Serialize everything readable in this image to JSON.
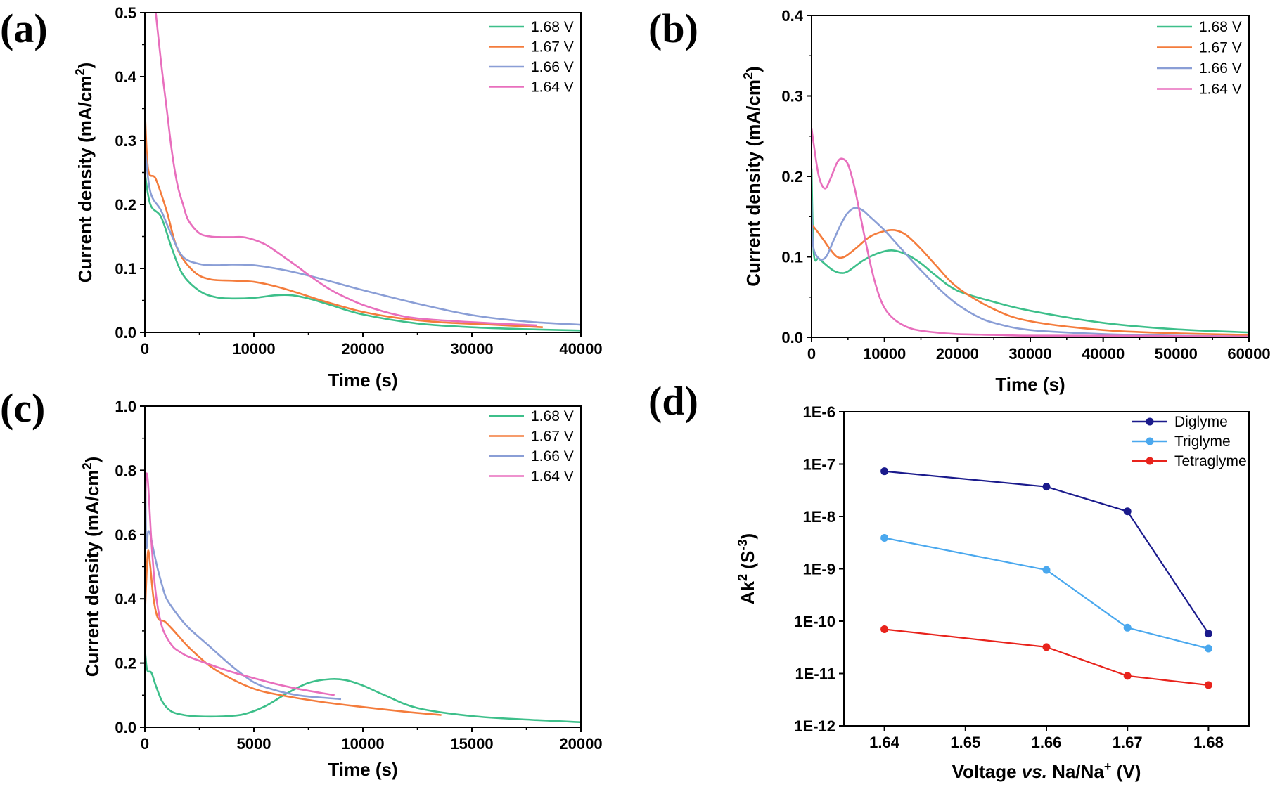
{
  "chart_data": [
    {
      "panel": "(a)",
      "type": "line",
      "xlabel": "Time (s)",
      "ylabel": "Current density (mA/cm²)",
      "xlim": [
        0,
        40000
      ],
      "ylim": [
        0,
        0.5
      ],
      "xticks": [
        0,
        10000,
        20000,
        30000,
        40000
      ],
      "yticks": [
        0.0,
        0.1,
        0.2,
        0.3,
        0.4,
        0.5
      ],
      "xtick_labels": [
        "0",
        "10000",
        "20000",
        "30000",
        "40000"
      ],
      "ytick_labels": [
        "0.0",
        "0.1",
        "0.2",
        "0.3",
        "0.4",
        "0.5"
      ],
      "legend_position": "top-right",
      "series": [
        {
          "name": "1.68 V",
          "color": "#3dbf8a",
          "x": [
            0,
            500,
            1500,
            2500,
            3500,
            5000,
            6500,
            8000,
            10000,
            12000,
            13500,
            15000,
            17000,
            20000,
            25000,
            30000,
            35000,
            40000
          ],
          "y": [
            0.25,
            0.2,
            0.18,
            0.13,
            0.09,
            0.065,
            0.055,
            0.053,
            0.054,
            0.058,
            0.058,
            0.053,
            0.043,
            0.028,
            0.014,
            0.008,
            0.005,
            0.003
          ]
        },
        {
          "name": "1.67 V",
          "color": "#f47c3c",
          "x": [
            0,
            300,
            1000,
            2000,
            3000,
            4500,
            6000,
            8000,
            10000,
            12000,
            14000,
            16000,
            18000,
            20000,
            23000,
            27000,
            32000,
            36500
          ],
          "y": [
            0.35,
            0.255,
            0.24,
            0.19,
            0.13,
            0.095,
            0.083,
            0.081,
            0.079,
            0.072,
            0.062,
            0.051,
            0.041,
            0.032,
            0.023,
            0.016,
            0.012,
            0.008
          ]
        },
        {
          "name": "1.66 V",
          "color": "#8a9ed6",
          "x": [
            0,
            500,
            1500,
            2500,
            3500,
            5000,
            6500,
            8000,
            10000,
            12000,
            14000,
            17000,
            20000,
            25000,
            30000,
            35000,
            40000
          ],
          "y": [
            0.29,
            0.22,
            0.19,
            0.15,
            0.118,
            0.107,
            0.105,
            0.106,
            0.105,
            0.1,
            0.093,
            0.08,
            0.066,
            0.045,
            0.027,
            0.017,
            0.012
          ]
        },
        {
          "name": "1.64 V",
          "color": "#e86fbd",
          "x": [
            1000,
            1500,
            2000,
            2500,
            3000,
            3500,
            4000,
            5000,
            6000,
            7000,
            8000,
            9000,
            10000,
            11000,
            12000,
            13000,
            14000,
            15000,
            16000,
            17000,
            18000,
            20000,
            22500,
            25000,
            30000,
            36000
          ],
          "y": [
            0.5,
            0.42,
            0.35,
            0.28,
            0.23,
            0.2,
            0.175,
            0.155,
            0.15,
            0.149,
            0.149,
            0.149,
            0.145,
            0.138,
            0.127,
            0.115,
            0.103,
            0.09,
            0.078,
            0.067,
            0.058,
            0.043,
            0.03,
            0.022,
            0.016,
            0.011
          ]
        }
      ]
    },
    {
      "panel": "(b)",
      "type": "line",
      "xlabel": "Time (s)",
      "ylabel": "Current density (mA/cm²)",
      "xlim": [
        0,
        60000
      ],
      "ylim": [
        0,
        0.4
      ],
      "xticks": [
        0,
        10000,
        20000,
        30000,
        40000,
        50000,
        60000
      ],
      "yticks": [
        0.0,
        0.1,
        0.2,
        0.3,
        0.4
      ],
      "xtick_labels": [
        "0",
        "10000",
        "20000",
        "30000",
        "40000",
        "50000",
        "60000"
      ],
      "ytick_labels": [
        "0.0",
        "0.1",
        "0.2",
        "0.3",
        "0.4"
      ],
      "legend_position": "top-right",
      "series": [
        {
          "name": "1.68 V",
          "color": "#3dbf8a",
          "x": [
            0,
            300,
            1000,
            2000,
            3000,
            4000,
            5000,
            7000,
            9000,
            11000,
            13000,
            15000,
            17000,
            20000,
            25000,
            30000,
            40000,
            50000,
            60000
          ],
          "y": [
            0.21,
            0.105,
            0.098,
            0.09,
            0.083,
            0.08,
            0.082,
            0.095,
            0.104,
            0.108,
            0.103,
            0.092,
            0.077,
            0.058,
            0.044,
            0.033,
            0.018,
            0.01,
            0.006
          ]
        },
        {
          "name": "1.67 V",
          "color": "#f47c3c",
          "x": [
            0,
            500,
            1500,
            2500,
            3500,
            4500,
            6000,
            8000,
            10000,
            11500,
            13000,
            15000,
            17000,
            20000,
            25000,
            30000,
            40000,
            50000,
            60000
          ],
          "y": [
            0.14,
            0.135,
            0.123,
            0.11,
            0.1,
            0.1,
            0.11,
            0.125,
            0.132,
            0.133,
            0.127,
            0.11,
            0.09,
            0.062,
            0.035,
            0.02,
            0.009,
            0.005,
            0.003
          ]
        },
        {
          "name": "1.66 V",
          "color": "#8a9ed6",
          "x": [
            0,
            200,
            1000,
            2000,
            3000,
            4000,
            5000,
            6000,
            7000,
            8000,
            10000,
            12000,
            14000,
            16000,
            18000,
            20000,
            22500,
            25000,
            30000,
            40000,
            50000,
            60000
          ],
          "y": [
            0.17,
            0.115,
            0.098,
            0.1,
            0.12,
            0.14,
            0.155,
            0.161,
            0.158,
            0.15,
            0.133,
            0.113,
            0.093,
            0.074,
            0.056,
            0.041,
            0.027,
            0.018,
            0.009,
            0.004,
            0.002,
            0.001
          ]
        },
        {
          "name": "1.64 V",
          "color": "#e86fbd",
          "x": [
            0,
            300,
            1000,
            1800,
            2500,
            3500,
            4200,
            5000,
            5800,
            6500,
            7500,
            8500,
            9500,
            10500,
            12000,
            14000,
            17000,
            20000,
            25000,
            30000,
            40000,
            60000
          ],
          "y": [
            0.26,
            0.24,
            0.2,
            0.185,
            0.195,
            0.217,
            0.222,
            0.215,
            0.19,
            0.16,
            0.115,
            0.075,
            0.046,
            0.03,
            0.018,
            0.01,
            0.006,
            0.004,
            0.003,
            0.002,
            0.002,
            0.001
          ]
        }
      ]
    },
    {
      "panel": "(c)",
      "type": "line",
      "xlabel": "Time (s)",
      "ylabel": "Current density (mA/cm²)",
      "xlim": [
        0,
        20000
      ],
      "ylim": [
        0,
        1.0
      ],
      "xticks": [
        0,
        5000,
        10000,
        15000,
        20000
      ],
      "yticks": [
        0.0,
        0.2,
        0.4,
        0.6,
        0.8,
        1.0
      ],
      "xtick_labels": [
        "0",
        "5000",
        "10000",
        "15000",
        "20000"
      ],
      "ytick_labels": [
        "0.0",
        "0.2",
        "0.4",
        "0.6",
        "0.8",
        "1.0"
      ],
      "legend_position": "top-right",
      "series": [
        {
          "name": "1.68 V",
          "color": "#3dbf8a",
          "x": [
            0,
            100,
            300,
            500,
            800,
            1200,
            1800,
            2500,
            3500,
            4500,
            5500,
            6500,
            7500,
            8500,
            9200,
            10000,
            11000,
            12500,
            15000,
            17500,
            20000
          ],
          "y": [
            0.25,
            0.18,
            0.17,
            0.13,
            0.08,
            0.05,
            0.038,
            0.034,
            0.034,
            0.04,
            0.065,
            0.105,
            0.138,
            0.15,
            0.147,
            0.13,
            0.1,
            0.06,
            0.035,
            0.024,
            0.016
          ]
        },
        {
          "name": "1.67 V",
          "color": "#f47c3c",
          "x": [
            0,
            80,
            150,
            250,
            400,
            600,
            900,
            1200,
            1600,
            2000,
            3000,
            4000,
            5000,
            6000,
            8000,
            10000,
            12000,
            13600
          ],
          "y": [
            0.34,
            0.48,
            0.55,
            0.5,
            0.4,
            0.34,
            0.33,
            0.31,
            0.28,
            0.25,
            0.19,
            0.15,
            0.12,
            0.103,
            0.08,
            0.063,
            0.048,
            0.038
          ]
        },
        {
          "name": "1.66 V",
          "color": "#8a9ed6",
          "x": [
            0,
            50,
            150,
            250,
            400,
            600,
            800,
            1000,
            1500,
            2000,
            3000,
            4000,
            5000,
            6000,
            7000,
            8000,
            9000
          ],
          "y": [
            1.0,
            0.58,
            0.61,
            0.6,
            0.55,
            0.49,
            0.44,
            0.4,
            0.35,
            0.31,
            0.25,
            0.19,
            0.14,
            0.115,
            0.1,
            0.093,
            0.088
          ]
        },
        {
          "name": "1.64 V",
          "color": "#e86fbd",
          "x": [
            0,
            50,
            120,
            200,
            300,
            450,
            600,
            800,
            1000,
            1300,
            1600,
            2000,
            3000,
            4000,
            5000,
            6000,
            7000,
            8000,
            8700
          ],
          "y": [
            0.6,
            0.77,
            0.78,
            0.7,
            0.58,
            0.45,
            0.37,
            0.31,
            0.28,
            0.25,
            0.235,
            0.22,
            0.195,
            0.172,
            0.153,
            0.135,
            0.12,
            0.108,
            0.1
          ]
        }
      ]
    },
    {
      "panel": "(d)",
      "type": "line",
      "xlabel": "Voltage vs. Na/Na+ (V)",
      "ylabel": "Ak2 (S-3)",
      "yscale": "log",
      "xlim": [
        1.635,
        1.685
      ],
      "ylim": [
        1e-12,
        1e-06
      ],
      "xticks": [
        1.64,
        1.65,
        1.66,
        1.67,
        1.68
      ],
      "yticks": [
        1e-12,
        1e-11,
        1e-10,
        1e-09,
        1e-08,
        1e-07,
        1e-06
      ],
      "xtick_labels": [
        "1.64",
        "1.65",
        "1.66",
        "1.67",
        "1.68"
      ],
      "ytick_labels": [
        "1E-12",
        "1E-11",
        "1E-10",
        "1E-9",
        "1E-8",
        "1E-7",
        "1E-6"
      ],
      "legend_position": "top-right",
      "series": [
        {
          "name": "Diglyme",
          "color": "#1a1a8c",
          "x": [
            1.64,
            1.66,
            1.67,
            1.68
          ],
          "y": [
            7.3e-08,
            3.7e-08,
            1.25e-08,
            5.8e-11
          ]
        },
        {
          "name": "Triglyme",
          "color": "#4aa8ee",
          "x": [
            1.64,
            1.66,
            1.67,
            1.68
          ],
          "y": [
            3.9e-09,
            9.5e-10,
            7.5e-11,
            3e-11
          ]
        },
        {
          "name": "Tetraglyme",
          "color": "#e8231c",
          "x": [
            1.64,
            1.66,
            1.67,
            1.68
          ],
          "y": [
            7e-11,
            3.2e-11,
            9e-12,
            6e-12
          ]
        }
      ]
    }
  ]
}
